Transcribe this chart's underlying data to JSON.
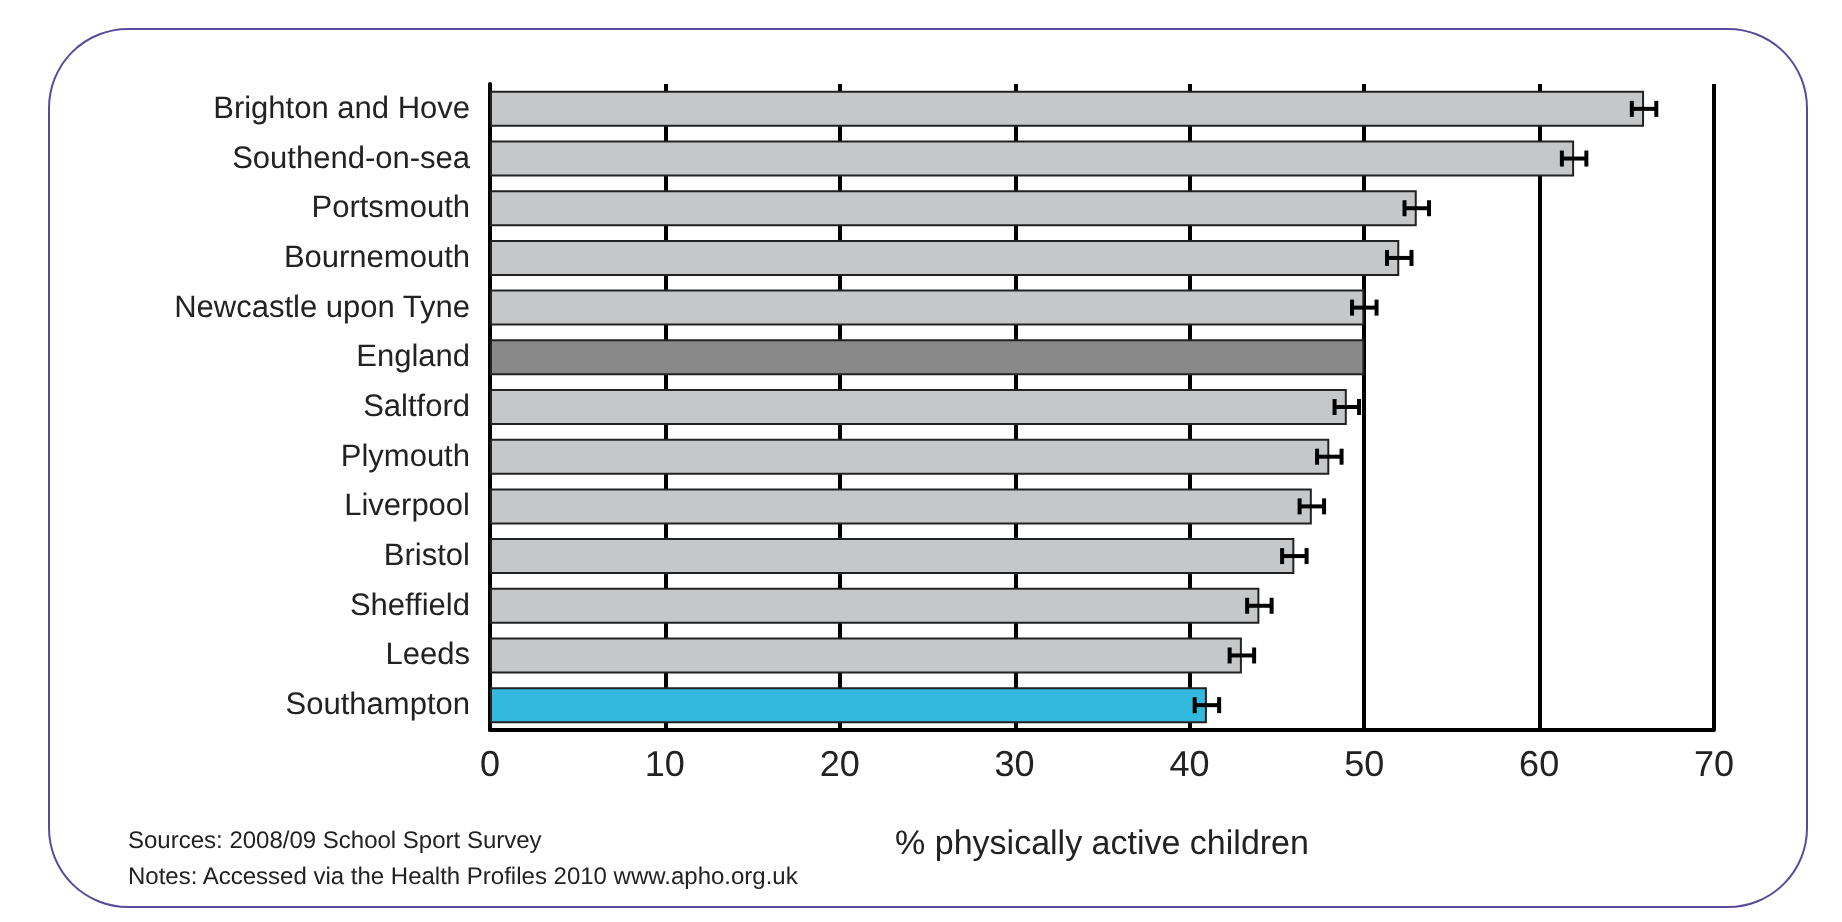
{
  "chart_data": {
    "type": "bar",
    "orientation": "horizontal",
    "categories": [
      "Brighton and Hove",
      "Southend-on-sea",
      "Portsmouth",
      "Bournemouth",
      "Newcastle upon Tyne",
      "England",
      "Saltford",
      "Plymouth",
      "Liverpool",
      "Bristol",
      "Sheffield",
      "Leeds",
      "Southampton"
    ],
    "values": [
      66,
      62,
      53,
      52,
      50,
      50,
      49,
      48,
      47,
      46,
      44,
      43,
      41
    ],
    "errors": [
      0.7,
      0.7,
      0.7,
      0.7,
      0.7,
      null,
      0.7,
      0.7,
      0.7,
      0.7,
      0.7,
      0.7,
      0.7
    ],
    "colors": [
      "#c6c7c9",
      "#c6c7c9",
      "#c6c7c9",
      "#c6c7c9",
      "#c6c7c9",
      "#898989",
      "#c6c7c9",
      "#c6c7c9",
      "#c6c7c9",
      "#c6c7c9",
      "#c6c7c9",
      "#c6c7c9",
      "#33b8de"
    ],
    "xlim": [
      0,
      70
    ],
    "xticks": [
      0,
      10,
      20,
      30,
      40,
      50,
      60,
      70
    ],
    "grid": "x",
    "xlabel": "% physically active children",
    "annotations": [
      "Sources: 2008/09 School Sport Survey",
      "Notes: Accessed via the Health Profiles 2010 www.apho.org.uk"
    ]
  }
}
